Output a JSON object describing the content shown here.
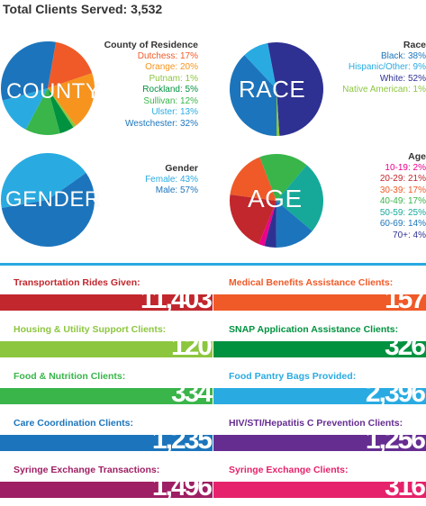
{
  "total": {
    "label": "Total Clients Served:",
    "value": "3,532"
  },
  "chart_data": [
    {
      "type": "pie",
      "label": "COUNTY",
      "title": "County of Residence",
      "slices": [
        {
          "name": "Dutchess",
          "value": 17,
          "color": "#f05a28"
        },
        {
          "name": "Orange",
          "value": 20,
          "color": "#f7941d"
        },
        {
          "name": "Putnam",
          "value": 1,
          "color": "#8cc63f"
        },
        {
          "name": "Rockland",
          "value": 5,
          "color": "#00923f"
        },
        {
          "name": "Sullivan",
          "value": 12,
          "color": "#39b54a"
        },
        {
          "name": "Ulster",
          "value": 13,
          "color": "#29abe2"
        },
        {
          "name": "Westchester",
          "value": 32,
          "color": "#1c75bc"
        }
      ]
    },
    {
      "type": "pie",
      "label": "RACE",
      "title": "Race",
      "slices": [
        {
          "name": "Black",
          "value": 38,
          "color": "#1c75bc"
        },
        {
          "name": "Hispanic/Other",
          "value": 9,
          "color": "#29abe2"
        },
        {
          "name": "White",
          "value": 52,
          "color": "#2e3192"
        },
        {
          "name": "Native American",
          "value": 1,
          "color": "#8cc63f"
        }
      ]
    },
    {
      "type": "pie",
      "label": "GENDER",
      "title": "Gender",
      "slices": [
        {
          "name": "Female",
          "value": 43,
          "color": "#29abe2"
        },
        {
          "name": "Male",
          "value": 57,
          "color": "#1c75bc"
        }
      ]
    },
    {
      "type": "pie",
      "label": "AGE",
      "title": "Age",
      "slices": [
        {
          "name": "10-19",
          "value": 2,
          "color": "#ec008c"
        },
        {
          "name": "20-29",
          "value": 21,
          "color": "#c1272d"
        },
        {
          "name": "30-39",
          "value": 17,
          "color": "#f05a28"
        },
        {
          "name": "40-49",
          "value": 17,
          "color": "#39b54a"
        },
        {
          "name": "50-59",
          "value": 25,
          "color": "#16a99a"
        },
        {
          "name": "60-69",
          "value": 14,
          "color": "#1c75bc"
        },
        {
          "name": "70+",
          "value": 4,
          "color": "#2e3192"
        }
      ]
    }
  ],
  "stats": [
    {
      "label": "Transportation Rides Given:",
      "value": "11,403",
      "color": "#c1272d"
    },
    {
      "label": "Medical Benefits Assistance Clients:",
      "value": "157",
      "color": "#f05a28"
    },
    {
      "label": "Housing & Utility Support Clients:",
      "value": "120",
      "color": "#8cc63f"
    },
    {
      "label": "SNAP Application Assistance Clients:",
      "value": "326",
      "color": "#00923f"
    },
    {
      "label": "Food & Nutrition Clients:",
      "value": "334",
      "color": "#39b54a"
    },
    {
      "label": "Food Pantry Bags Provided:",
      "value": "2,396",
      "color": "#29abe2"
    },
    {
      "label": "Care Coordination Clients:",
      "value": "1,235",
      "color": "#1c75bc"
    },
    {
      "label": "HIV/STI/Hepatitis C Prevention Clients:",
      "value": "1,256",
      "color": "#662d91"
    },
    {
      "label": "Syringe Exchange Transactions:",
      "value": "1,496",
      "color": "#9e1f63"
    },
    {
      "label": "Syringe Exchange Clients:",
      "value": "316",
      "color": "#e5226b"
    }
  ]
}
